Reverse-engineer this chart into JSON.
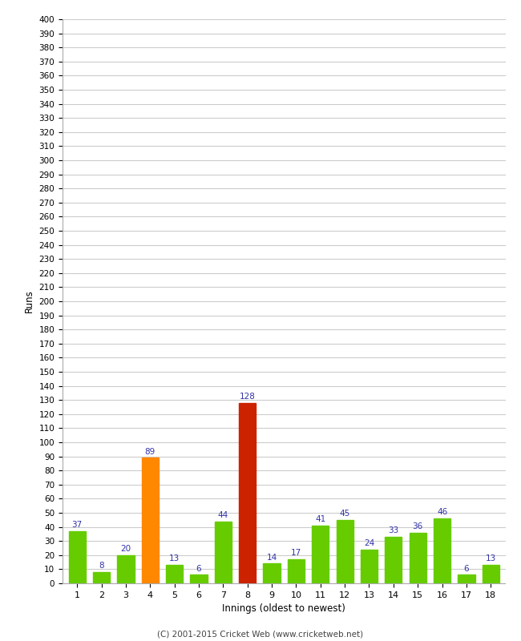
{
  "xlabel": "Innings (oldest to newest)",
  "ylabel": "Runs",
  "categories": [
    1,
    2,
    3,
    4,
    5,
    6,
    7,
    8,
    9,
    10,
    11,
    12,
    13,
    14,
    15,
    16,
    17,
    18
  ],
  "values": [
    37,
    8,
    20,
    89,
    13,
    6,
    44,
    128,
    14,
    17,
    41,
    45,
    24,
    33,
    36,
    46,
    6,
    13
  ],
  "bar_colors": [
    "#66cc00",
    "#66cc00",
    "#66cc00",
    "#ff8800",
    "#66cc00",
    "#66cc00",
    "#66cc00",
    "#cc2200",
    "#66cc00",
    "#66cc00",
    "#66cc00",
    "#66cc00",
    "#66cc00",
    "#66cc00",
    "#66cc00",
    "#66cc00",
    "#66cc00",
    "#66cc00"
  ],
  "ylim": [
    0,
    400
  ],
  "yticks": [
    0,
    10,
    20,
    30,
    40,
    50,
    60,
    70,
    80,
    90,
    100,
    110,
    120,
    130,
    140,
    150,
    160,
    170,
    180,
    190,
    200,
    210,
    220,
    230,
    240,
    250,
    260,
    270,
    280,
    290,
    300,
    310,
    320,
    330,
    340,
    350,
    360,
    370,
    380,
    390,
    400
  ],
  "label_color": "#3333aa",
  "background_color": "#ffffff",
  "grid_color": "#cccccc",
  "footer": "(C) 2001-2015 Cricket Web (www.cricketweb.net)",
  "ylabel_rotation": 90
}
